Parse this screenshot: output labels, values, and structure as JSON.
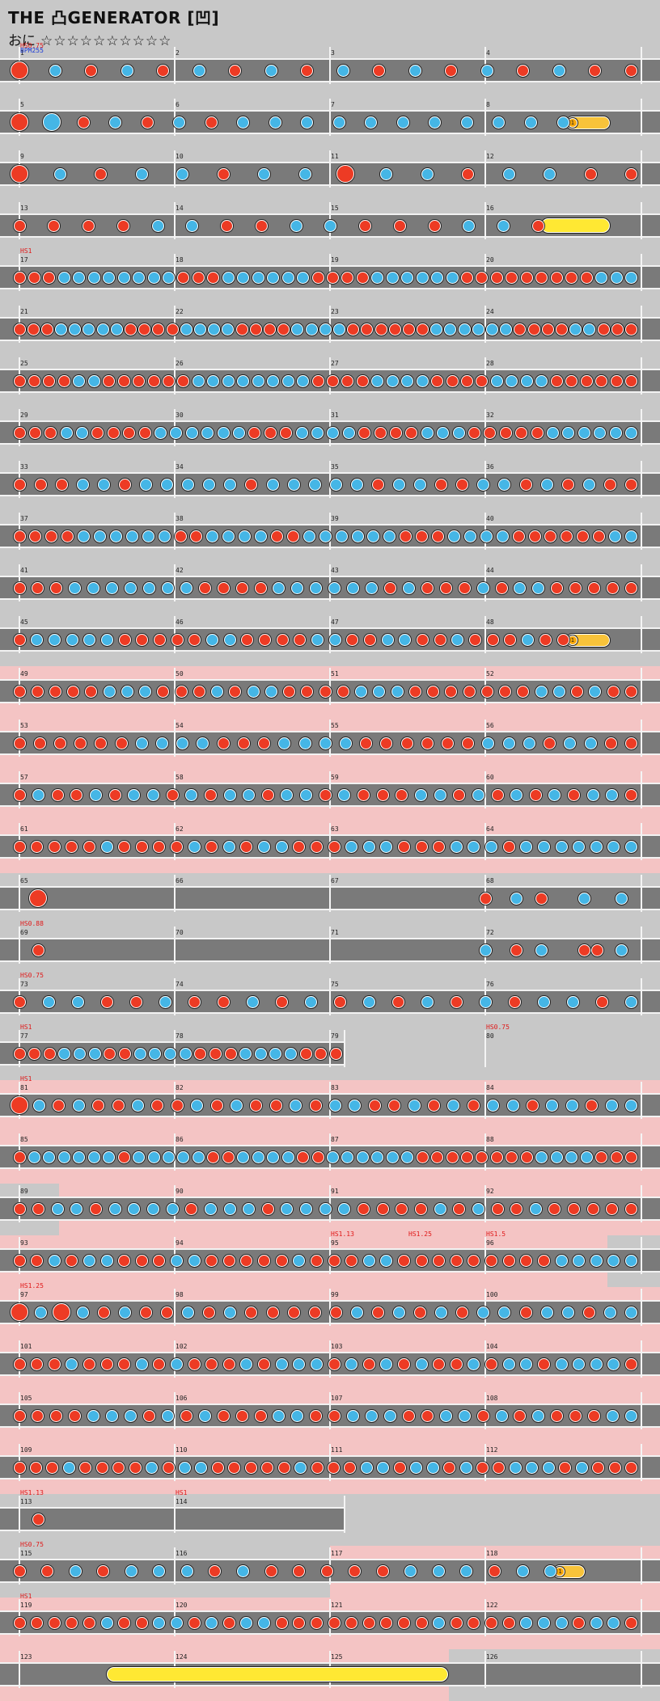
{
  "header": {
    "title": "THE 凸GENERATOR [凹]",
    "difficulty_label": "おに",
    "stars": "☆☆☆☆☆☆☆☆☆☆"
  },
  "colors": {
    "don": "#ed3b24",
    "ka": "#45b6e6",
    "roll": "#f8c33a",
    "balloon": "#ffe833",
    "lane": "#7a7a7a",
    "gogo": "#f4c4c4",
    "bg": "#c8c8c8"
  },
  "score": {
    "first_ann": [
      {
        "text": "HSO.75",
        "color": "red"
      },
      {
        "text": "BPM255",
        "color": "blue"
      }
    ],
    "rows": [
      {
        "m": [
          1,
          2,
          3,
          4
        ],
        "notes": "dkdkdkdkdkdkdkdkdd",
        "big": [
          0
        ],
        "anns": []
      },
      {
        "m": [
          5,
          6,
          7,
          8
        ],
        "notes": "dkdkdkdkkkkkkkkkkk",
        "big": [
          0,
          1
        ],
        "roll": [
          0.88,
          0.95
        ],
        "anns": []
      },
      {
        "m": [
          9,
          10,
          11,
          12
        ],
        "notes": "dkdkkdkkdkkdkkdd",
        "big": [
          0,
          8
        ],
        "anns": []
      },
      {
        "m": [
          13,
          14,
          15,
          16
        ],
        "notes": "ddddkkddkkdddkkd",
        "balloon": [
          0.84,
          0.95
        ],
        "anns": []
      },
      {
        "m": [
          17,
          18,
          19,
          20
        ],
        "notes": "dddkkkkkkkkdddkkkkkkddddkkkkkkdddddddddkkk",
        "anns": [
          {
            "text": "HS1",
            "at": 0
          }
        ]
      },
      {
        "m": [
          21,
          22,
          23,
          24
        ],
        "notes": "dddkkkkkddddkkkkddddkkkkddddddkkkkkkddddkkddd",
        "anns": []
      },
      {
        "m": [
          25,
          26,
          27,
          28
        ],
        "notes": "ddddkkddddddkkkkkkkkddddkkkkddddkkkkdddddd",
        "anns": []
      },
      {
        "m": [
          29,
          30,
          31,
          32
        ],
        "notes": "dddkkddddkkkkkkdddkkkkddddkkkdddddkkkkkk",
        "anns": []
      },
      {
        "m": [
          33,
          34,
          35,
          36
        ],
        "notes": "dddkkdkkkkkdkkkkkdkkddkkdkdkdd",
        "anns": []
      },
      {
        "m": [
          37,
          38,
          39,
          40
        ],
        "notes": "ddddkkkkkkddkkkkddkkkkkkdddkkkkddddddkk",
        "anns": []
      },
      {
        "m": [
          41,
          42,
          43,
          44
        ],
        "notes": "dddkkkkkkkddddkkkkkkdkdddkdkkddddd",
        "anns": []
      },
      {
        "m": [
          45,
          46,
          47,
          48
        ],
        "notes": "dkkkkkdddddkkddddkkddkkddkdddkdd",
        "roll": [
          0.88,
          0.95
        ],
        "anns": []
      },
      {
        "m": [
          49,
          50,
          51,
          52
        ],
        "notes": "dddddkkkdddkdkkddddkkkdddddddkkdkdd",
        "gogo": true,
        "anns": []
      },
      {
        "m": [
          53,
          54,
          55,
          56
        ],
        "notes": "ddddddkkkkdddkkkkddddddkkkdkkdd",
        "gogo": true,
        "anns": []
      },
      {
        "m": [
          57,
          58,
          59,
          60
        ],
        "notes": "dkddkdkkdkdkkdkkdkdddkkdkdkdkdkkd",
        "gogo": true,
        "anns": []
      },
      {
        "m": [
          61,
          62,
          63,
          64
        ],
        "notes": "dddddkddddkdkdkkdddkkkdddkkkdkkkkkkk",
        "gogo": true,
        "anns": []
      },
      {
        "m": [
          65,
          66,
          67,
          68
        ],
        "notes": "ddkdkk",
        "big": [
          0
        ],
        "positions": [
          0.03,
          0.75,
          0.8,
          0.84,
          0.91,
          0.97
        ],
        "anns": []
      },
      {
        "m": [
          69,
          70,
          71,
          72
        ],
        "notes": "dkdkddk",
        "positions": [
          0.03,
          0.75,
          0.8,
          0.84,
          0.91,
          0.93,
          0.97
        ],
        "anns": [
          {
            "text": "HS0.88",
            "at": 0
          }
        ]
      },
      {
        "m": [
          73,
          74,
          75,
          76
        ],
        "notes": "dkkddkddkdkdkdkdkdkkdk",
        "anns": [
          {
            "text": "HS0.75",
            "at": 0
          }
        ]
      },
      {
        "m": [
          77,
          78,
          79,
          80
        ],
        "notes": "dddkkkddkkkkdddkkkkddd",
        "span": 0.52,
        "anns": [
          {
            "text": "HS1",
            "at": 0
          },
          {
            "text": "HS0.75",
            "at": 3
          }
        ]
      },
      {
        "m": [
          81,
          82,
          83,
          84
        ],
        "notes": "dkdkddkddkdkddkdkkddkdkdkkdkkdkk",
        "big": [
          0
        ],
        "gogo": true,
        "anns": [
          {
            "text": "HS1",
            "at": 0
          }
        ]
      },
      {
        "m": [
          85,
          86,
          87,
          88
        ],
        "notes": "dkkkkkkdkkkkkddkkkkddkkkkkkddddddddkkkkddd",
        "gogo": true,
        "anns": []
      },
      {
        "m": [
          89,
          90,
          91,
          92
        ],
        "notes": "ddkkdkkkkdkkkdkkkkddddkdkddkddddd",
        "gogo": true,
        "gogostart": 0.09,
        "anns": []
      },
      {
        "m": [
          93,
          94,
          95,
          96
        ],
        "notes": "ddkdkkdddkkdddddkdddkkdddddddddkkkkk",
        "gogo": true,
        "gogoend": 0.92,
        "anns": [
          {
            "text": "HS1.13",
            "at": 2
          },
          {
            "text": "HS1.25",
            "at": 2.5
          },
          {
            "text": "HS1.5",
            "at": 3
          }
        ]
      },
      {
        "m": [
          97,
          98,
          99,
          100
        ],
        "notes": "dkdkdkddkdkdddddkdkdkdkkdkkdkk",
        "big": [
          0,
          2
        ],
        "gogo": true,
        "anns": [
          {
            "text": "HS1.25",
            "at": 0
          }
        ]
      },
      {
        "m": [
          101,
          102,
          103,
          104
        ],
        "notes": "dddkdddkdkdddkdkkkdkdkdkddkdkkdkkkkd",
        "gogo": true,
        "anns": []
      },
      {
        "m": [
          105,
          106,
          107,
          108
        ],
        "notes": "ddddkkkdkdkdddkkddkkkddkkdkdkdddkk",
        "gogo": true,
        "anns": []
      },
      {
        "m": [
          109,
          110,
          111,
          112
        ],
        "notes": "dddkddddkdkkdddddkdddkkdkkdkddkkkdkddd",
        "gogo": true,
        "anns": []
      },
      {
        "m": [
          113,
          114
        ],
        "notes": "d",
        "positions": [
          0.03
        ],
        "span": 0.52,
        "anns": [
          {
            "text": "HS1.13",
            "at": 0
          },
          {
            "text": "HS1",
            "at": 1
          }
        ]
      },
      {
        "m": [
          115,
          116,
          117,
          118
        ],
        "notes": "ddkdkkkdkdddddkkkdkk",
        "roll": [
          0.86,
          0.91
        ],
        "gogostart": 0.5,
        "anns": [
          {
            "text": "HS0.75",
            "at": 0
          }
        ]
      },
      {
        "m": [
          119,
          120,
          121,
          122
        ],
        "notes": "dddddkddkkdkdkkdddddddddkddddkkkdkkd",
        "gogo": true,
        "anns": [
          {
            "text": "HS1",
            "at": 0
          }
        ]
      },
      {
        "m": [
          123,
          124,
          125,
          126
        ],
        "notes": "",
        "balloon": [
          0.14,
          0.69
        ],
        "gogo": true,
        "gogoend": 0.68,
        "anns": []
      }
    ]
  }
}
